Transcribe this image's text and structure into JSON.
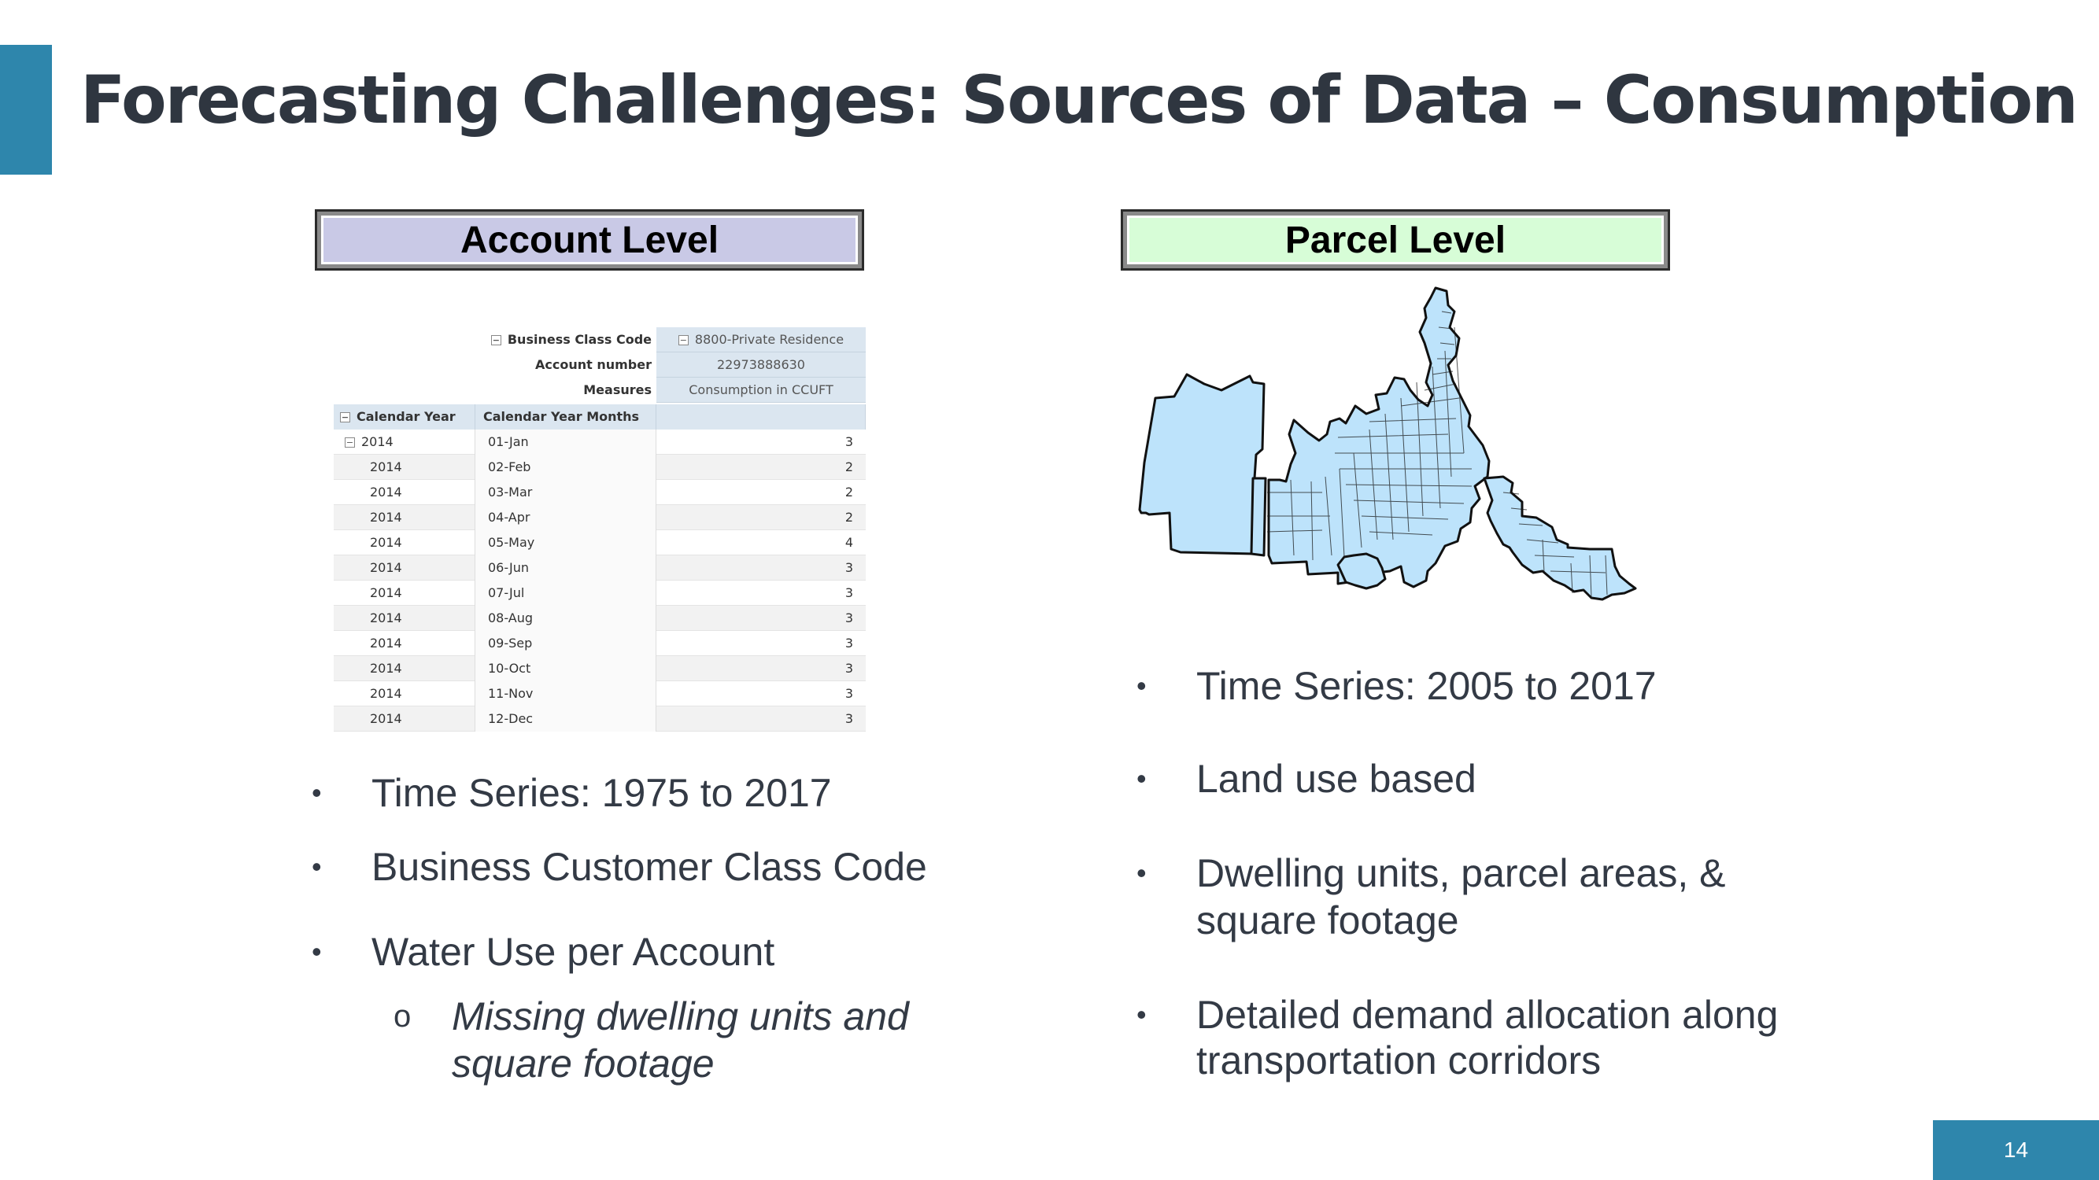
{
  "slide": {
    "title": "Forecasting Challenges: Sources of Data – Consumption",
    "page_number": "14",
    "accent_color": "#2e86ac"
  },
  "account": {
    "heading": "Account Level",
    "pivot": {
      "header_rows": [
        {
          "label": "Business Class Code",
          "value": "8800-Private Residence"
        },
        {
          "label": "Account number",
          "value": "22973888630"
        },
        {
          "label": "Measures",
          "value": "Consumption in CCUFT"
        }
      ],
      "col_headers": [
        "Calendar Year",
        "Calendar Year Months"
      ],
      "rows": [
        {
          "year": "2014",
          "month": "01-Jan",
          "value": "3"
        },
        {
          "year": "2014",
          "month": "02-Feb",
          "value": "2"
        },
        {
          "year": "2014",
          "month": "03-Mar",
          "value": "2"
        },
        {
          "year": "2014",
          "month": "04-Apr",
          "value": "2"
        },
        {
          "year": "2014",
          "month": "05-May",
          "value": "4"
        },
        {
          "year": "2014",
          "month": "06-Jun",
          "value": "3"
        },
        {
          "year": "2014",
          "month": "07-Jul",
          "value": "3"
        },
        {
          "year": "2014",
          "month": "08-Aug",
          "value": "3"
        },
        {
          "year": "2014",
          "month": "09-Sep",
          "value": "3"
        },
        {
          "year": "2014",
          "month": "10-Oct",
          "value": "3"
        },
        {
          "year": "2014",
          "month": "11-Nov",
          "value": "3"
        },
        {
          "year": "2014",
          "month": "12-Dec",
          "value": "3"
        }
      ]
    },
    "bullets": [
      "Time Series: 1975 to 2017",
      "Business Customer Class Code",
      "Water Use per Account"
    ],
    "sub_marker": "o",
    "sub_bullet_lines": [
      "Missing dwelling units and",
      "square footage"
    ]
  },
  "parcel": {
    "heading": "Parcel Level",
    "bullets": [
      "Time Series: 2005 to 2017",
      "Land use based",
      "Dwelling units, parcel areas, &",
      "square footage",
      "Detailed demand allocation along",
      "transportation corridors"
    ]
  },
  "bullet_glyph": "•"
}
